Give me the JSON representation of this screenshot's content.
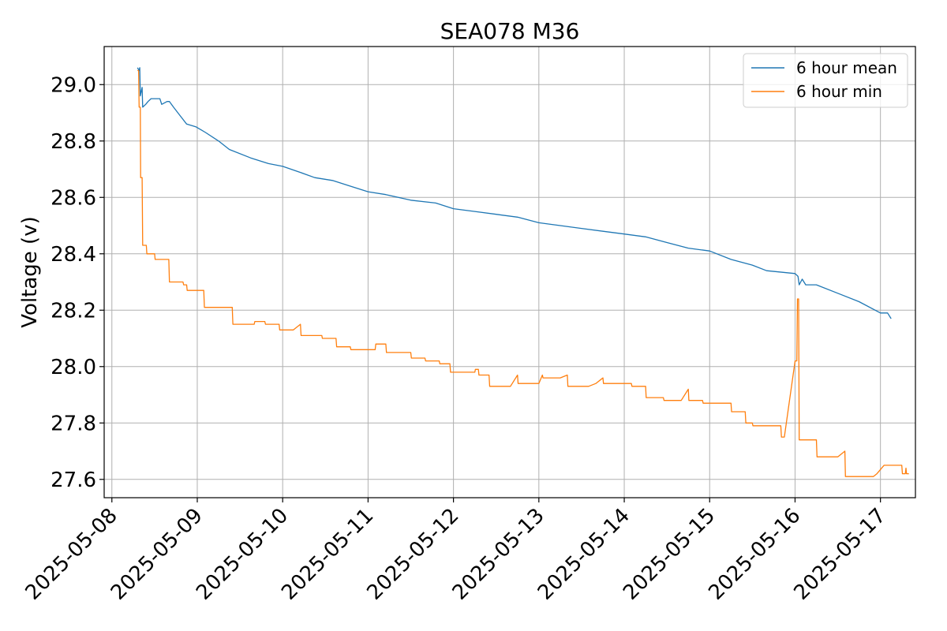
{
  "chart_data": {
    "type": "line",
    "title": "SEA078 M36",
    "xlabel": "",
    "ylabel": "Voltage (v)",
    "xlim": [
      "2025-05-07T21:50",
      "2025-05-17T09:50"
    ],
    "ylim": [
      27.535,
      29.135
    ],
    "x_ticks": [
      "2025-05-08",
      "2025-05-09",
      "2025-05-10",
      "2025-05-11",
      "2025-05-12",
      "2025-05-13",
      "2025-05-14",
      "2025-05-15",
      "2025-05-16",
      "2025-05-17"
    ],
    "y_ticks": [
      "27.6",
      "27.8",
      "28.0",
      "28.2",
      "28.4",
      "28.6",
      "28.8",
      "29.0"
    ],
    "grid": true,
    "legend_position": "top-right",
    "series": [
      {
        "name": "6 hour mean",
        "color": "#1f77b4",
        "points": [
          [
            "2025-05-08T07:12",
            29.06
          ],
          [
            "2025-05-08T07:40",
            29.05
          ],
          [
            "2025-05-08T07:50",
            29.06
          ],
          [
            "2025-05-08T08:00",
            28.96
          ],
          [
            "2025-05-08T08:20",
            28.98
          ],
          [
            "2025-05-08T08:30",
            28.99
          ],
          [
            "2025-05-08T08:40",
            28.92
          ],
          [
            "2025-05-08T09:30",
            28.93
          ],
          [
            "2025-05-08T10:10",
            28.94
          ],
          [
            "2025-05-08T11:00",
            28.95
          ],
          [
            "2025-05-08T13:30",
            28.95
          ],
          [
            "2025-05-08T14:00",
            28.93
          ],
          [
            "2025-05-08T15:30",
            28.94
          ],
          [
            "2025-05-08T16:10",
            28.94
          ],
          [
            "2025-05-08T17:20",
            28.92
          ],
          [
            "2025-05-08T19:10",
            28.89
          ],
          [
            "2025-05-08T21:00",
            28.86
          ],
          [
            "2025-05-08T23:40",
            28.85
          ],
          [
            "2025-05-09T02:20",
            28.83
          ],
          [
            "2025-05-09T06:00",
            28.8
          ],
          [
            "2025-05-09T09:00",
            28.77
          ],
          [
            "2025-05-09T15:00",
            28.74
          ],
          [
            "2025-05-09T20:00",
            28.72
          ],
          [
            "2025-05-10T00:00",
            28.71
          ],
          [
            "2025-05-10T04:40",
            28.69
          ],
          [
            "2025-05-10T09:00",
            28.67
          ],
          [
            "2025-05-10T14:00",
            28.66
          ],
          [
            "2025-05-10T19:00",
            28.64
          ],
          [
            "2025-05-11T00:00",
            28.62
          ],
          [
            "2025-05-11T05:00",
            28.61
          ],
          [
            "2025-05-11T12:00",
            28.59
          ],
          [
            "2025-05-11T19:00",
            28.58
          ],
          [
            "2025-05-12T00:00",
            28.56
          ],
          [
            "2025-05-12T06:00",
            28.55
          ],
          [
            "2025-05-12T12:00",
            28.54
          ],
          [
            "2025-05-12T18:00",
            28.53
          ],
          [
            "2025-05-13T00:00",
            28.51
          ],
          [
            "2025-05-13T06:00",
            28.5
          ],
          [
            "2025-05-13T12:00",
            28.49
          ],
          [
            "2025-05-13T18:00",
            28.48
          ],
          [
            "2025-05-14T00:00",
            28.47
          ],
          [
            "2025-05-14T06:00",
            28.46
          ],
          [
            "2025-05-14T12:00",
            28.44
          ],
          [
            "2025-05-14T18:00",
            28.42
          ],
          [
            "2025-05-15T00:00",
            28.41
          ],
          [
            "2025-05-15T06:00",
            28.38
          ],
          [
            "2025-05-15T12:00",
            28.36
          ],
          [
            "2025-05-15T16:00",
            28.34
          ],
          [
            "2025-05-16T00:00",
            28.33
          ],
          [
            "2025-05-16T00:50",
            28.32
          ],
          [
            "2025-05-16T01:10",
            28.29
          ],
          [
            "2025-05-16T02:00",
            28.31
          ],
          [
            "2025-05-16T03:00",
            28.29
          ],
          [
            "2025-05-16T06:00",
            28.29
          ],
          [
            "2025-05-16T12:00",
            28.26
          ],
          [
            "2025-05-16T18:00",
            28.23
          ],
          [
            "2025-05-17T00:00",
            28.19
          ],
          [
            "2025-05-17T02:00",
            28.19
          ],
          [
            "2025-05-17T03:00",
            28.17
          ]
        ]
      },
      {
        "name": "6 hour min",
        "color": "#ff7f0e",
        "points": [
          [
            "2025-05-08T07:12",
            29.05
          ],
          [
            "2025-05-08T07:30",
            29.05
          ],
          [
            "2025-05-08T07:40",
            28.92
          ],
          [
            "2025-05-08T08:00",
            28.92
          ],
          [
            "2025-05-08T08:05",
            28.67
          ],
          [
            "2025-05-08T08:30",
            28.67
          ],
          [
            "2025-05-08T08:40",
            28.43
          ],
          [
            "2025-05-08T09:40",
            28.43
          ],
          [
            "2025-05-08T09:50",
            28.4
          ],
          [
            "2025-05-08T12:00",
            28.4
          ],
          [
            "2025-05-08T12:10",
            28.38
          ],
          [
            "2025-05-08T16:00",
            28.38
          ],
          [
            "2025-05-08T16:10",
            28.3
          ],
          [
            "2025-05-08T20:00",
            28.3
          ],
          [
            "2025-05-08T20:10",
            28.29
          ],
          [
            "2025-05-08T21:00",
            28.29
          ],
          [
            "2025-05-08T21:10",
            28.27
          ],
          [
            "2025-05-09T01:50",
            28.27
          ],
          [
            "2025-05-09T02:00",
            28.21
          ],
          [
            "2025-05-09T09:50",
            28.21
          ],
          [
            "2025-05-09T10:00",
            28.15
          ],
          [
            "2025-05-09T16:00",
            28.15
          ],
          [
            "2025-05-09T16:10",
            28.16
          ],
          [
            "2025-05-09T19:00",
            28.16
          ],
          [
            "2025-05-09T19:10",
            28.15
          ],
          [
            "2025-05-09T23:00",
            28.15
          ],
          [
            "2025-05-09T23:10",
            28.13
          ],
          [
            "2025-05-10T03:00",
            28.13
          ],
          [
            "2025-05-10T05:00",
            28.15
          ],
          [
            "2025-05-10T05:10",
            28.11
          ],
          [
            "2025-05-10T11:00",
            28.11
          ],
          [
            "2025-05-10T11:10",
            28.1
          ],
          [
            "2025-05-10T15:00",
            28.1
          ],
          [
            "2025-05-10T15:10",
            28.07
          ],
          [
            "2025-05-10T19:00",
            28.07
          ],
          [
            "2025-05-10T19:10",
            28.06
          ],
          [
            "2025-05-11T02:00",
            28.06
          ],
          [
            "2025-05-11T02:10",
            28.08
          ],
          [
            "2025-05-11T05:00",
            28.08
          ],
          [
            "2025-05-11T05:10",
            28.05
          ],
          [
            "2025-05-11T12:00",
            28.05
          ],
          [
            "2025-05-11T12:10",
            28.03
          ],
          [
            "2025-05-11T16:00",
            28.03
          ],
          [
            "2025-05-11T16:10",
            28.02
          ],
          [
            "2025-05-11T20:00",
            28.02
          ],
          [
            "2025-05-11T20:10",
            28.01
          ],
          [
            "2025-05-11T23:00",
            28.01
          ],
          [
            "2025-05-11T23:10",
            27.98
          ],
          [
            "2025-05-12T06:00",
            27.98
          ],
          [
            "2025-05-12T06:10",
            27.99
          ],
          [
            "2025-05-12T07:00",
            27.99
          ],
          [
            "2025-05-12T07:10",
            27.97
          ],
          [
            "2025-05-12T10:00",
            27.97
          ],
          [
            "2025-05-12T10:10",
            27.93
          ],
          [
            "2025-05-12T16:00",
            27.93
          ],
          [
            "2025-05-12T18:00",
            27.97
          ],
          [
            "2025-05-12T18:10",
            27.94
          ],
          [
            "2025-05-13T00:00",
            27.94
          ],
          [
            "2025-05-13T01:00",
            27.97
          ],
          [
            "2025-05-13T01:10",
            27.96
          ],
          [
            "2025-05-13T06:00",
            27.96
          ],
          [
            "2025-05-13T08:00",
            27.97
          ],
          [
            "2025-05-13T08:10",
            27.93
          ],
          [
            "2025-05-13T14:00",
            27.93
          ],
          [
            "2025-05-13T16:00",
            27.94
          ],
          [
            "2025-05-13T18:00",
            27.96
          ],
          [
            "2025-05-13T18:10",
            27.94
          ],
          [
            "2025-05-14T02:00",
            27.94
          ],
          [
            "2025-05-14T02:10",
            27.93
          ],
          [
            "2025-05-14T06:00",
            27.93
          ],
          [
            "2025-05-14T06:10",
            27.89
          ],
          [
            "2025-05-14T11:00",
            27.89
          ],
          [
            "2025-05-14T11:10",
            27.88
          ],
          [
            "2025-05-14T16:00",
            27.88
          ],
          [
            "2025-05-14T18:00",
            27.92
          ],
          [
            "2025-05-14T18:10",
            27.88
          ],
          [
            "2025-05-14T22:00",
            27.88
          ],
          [
            "2025-05-14T22:10",
            27.87
          ],
          [
            "2025-05-15T06:00",
            27.87
          ],
          [
            "2025-05-15T06:10",
            27.84
          ],
          [
            "2025-05-15T10:00",
            27.84
          ],
          [
            "2025-05-15T10:10",
            27.8
          ],
          [
            "2025-05-15T12:00",
            27.8
          ],
          [
            "2025-05-15T12:10",
            27.79
          ],
          [
            "2025-05-15T20:00",
            27.79
          ],
          [
            "2025-05-15T20:10",
            27.75
          ],
          [
            "2025-05-15T21:00",
            27.75
          ],
          [
            "2025-05-16T00:00",
            28.02
          ],
          [
            "2025-05-16T00:30",
            28.02
          ],
          [
            "2025-05-16T00:40",
            28.24
          ],
          [
            "2025-05-16T01:00",
            28.24
          ],
          [
            "2025-05-16T01:10",
            27.74
          ],
          [
            "2025-05-16T06:00",
            27.74
          ],
          [
            "2025-05-16T06:10",
            27.68
          ],
          [
            "2025-05-16T12:00",
            27.68
          ],
          [
            "2025-05-16T14:00",
            27.7
          ],
          [
            "2025-05-16T14:10",
            27.61
          ],
          [
            "2025-05-16T22:00",
            27.61
          ],
          [
            "2025-05-16T23:00",
            27.62
          ],
          [
            "2025-05-17T01:00",
            27.65
          ],
          [
            "2025-05-17T06:00",
            27.65
          ],
          [
            "2025-05-17T06:10",
            27.62
          ],
          [
            "2025-05-17T07:00",
            27.62
          ],
          [
            "2025-05-17T07:10",
            27.64
          ],
          [
            "2025-05-17T07:20",
            27.62
          ],
          [
            "2025-05-17T08:00",
            27.62
          ]
        ]
      }
    ]
  }
}
